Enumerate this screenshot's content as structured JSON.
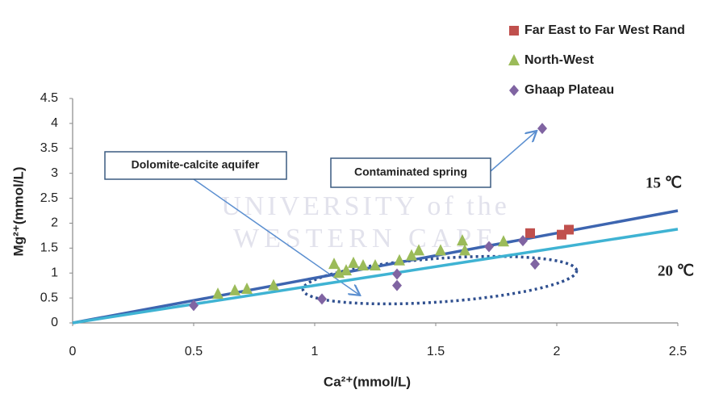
{
  "chart_data": {
    "type": "scatter",
    "xlabel": "Ca²⁺(mmol/L)",
    "ylabel": "Mg²⁺(mmol/L)",
    "xlim": [
      0,
      2.5
    ],
    "ylim": [
      0,
      4.5
    ],
    "xticks": [
      0,
      0.5,
      1,
      1.5,
      2,
      2.5
    ],
    "yticks": [
      0,
      0.5,
      1,
      1.5,
      2,
      2.5,
      3,
      3.5,
      4,
      4.5
    ],
    "grid": false,
    "legend": "top-right",
    "watermark": [
      "UNIVERSITY of the",
      "WESTERN CAPE"
    ],
    "series": [
      {
        "name": "Far East to Far West Rand",
        "color": "#c0504d",
        "marker": "square",
        "x": [
          1.89,
          2.02,
          2.05
        ],
        "values": [
          1.8,
          1.77,
          1.87
        ]
      },
      {
        "name": "North-West",
        "color": "#9bbb59",
        "marker": "triangle",
        "x": [
          0.6,
          0.67,
          0.72,
          0.83,
          1.08,
          1.1,
          1.13,
          1.16,
          1.2,
          1.25,
          1.35,
          1.4,
          1.43,
          1.52,
          1.61,
          1.62,
          1.78
        ],
        "values": [
          0.58,
          0.65,
          0.68,
          0.75,
          1.18,
          1.0,
          1.05,
          1.2,
          1.15,
          1.15,
          1.25,
          1.35,
          1.45,
          1.45,
          1.65,
          1.45,
          1.63
        ]
      },
      {
        "name": "Ghaap Plateau",
        "color": "#8064a2",
        "marker": "diamond",
        "x": [
          0.5,
          1.03,
          1.34,
          1.34,
          1.72,
          1.86,
          1.91,
          1.94
        ],
        "values": [
          0.35,
          0.48,
          0.75,
          0.98,
          1.53,
          1.65,
          1.18,
          3.9
        ]
      }
    ],
    "lines": [
      {
        "name": "15 ℃",
        "color": "#3d65b0",
        "x": [
          0,
          2.5
        ],
        "values": [
          0,
          2.25
        ]
      },
      {
        "name": "20 ℃",
        "color": "#3fb3d3",
        "x": [
          0,
          2.5
        ],
        "values": [
          0,
          1.88
        ]
      }
    ],
    "annotations": [
      "Dolomite-calcite aquifer",
      "Contaminated spring"
    ]
  }
}
